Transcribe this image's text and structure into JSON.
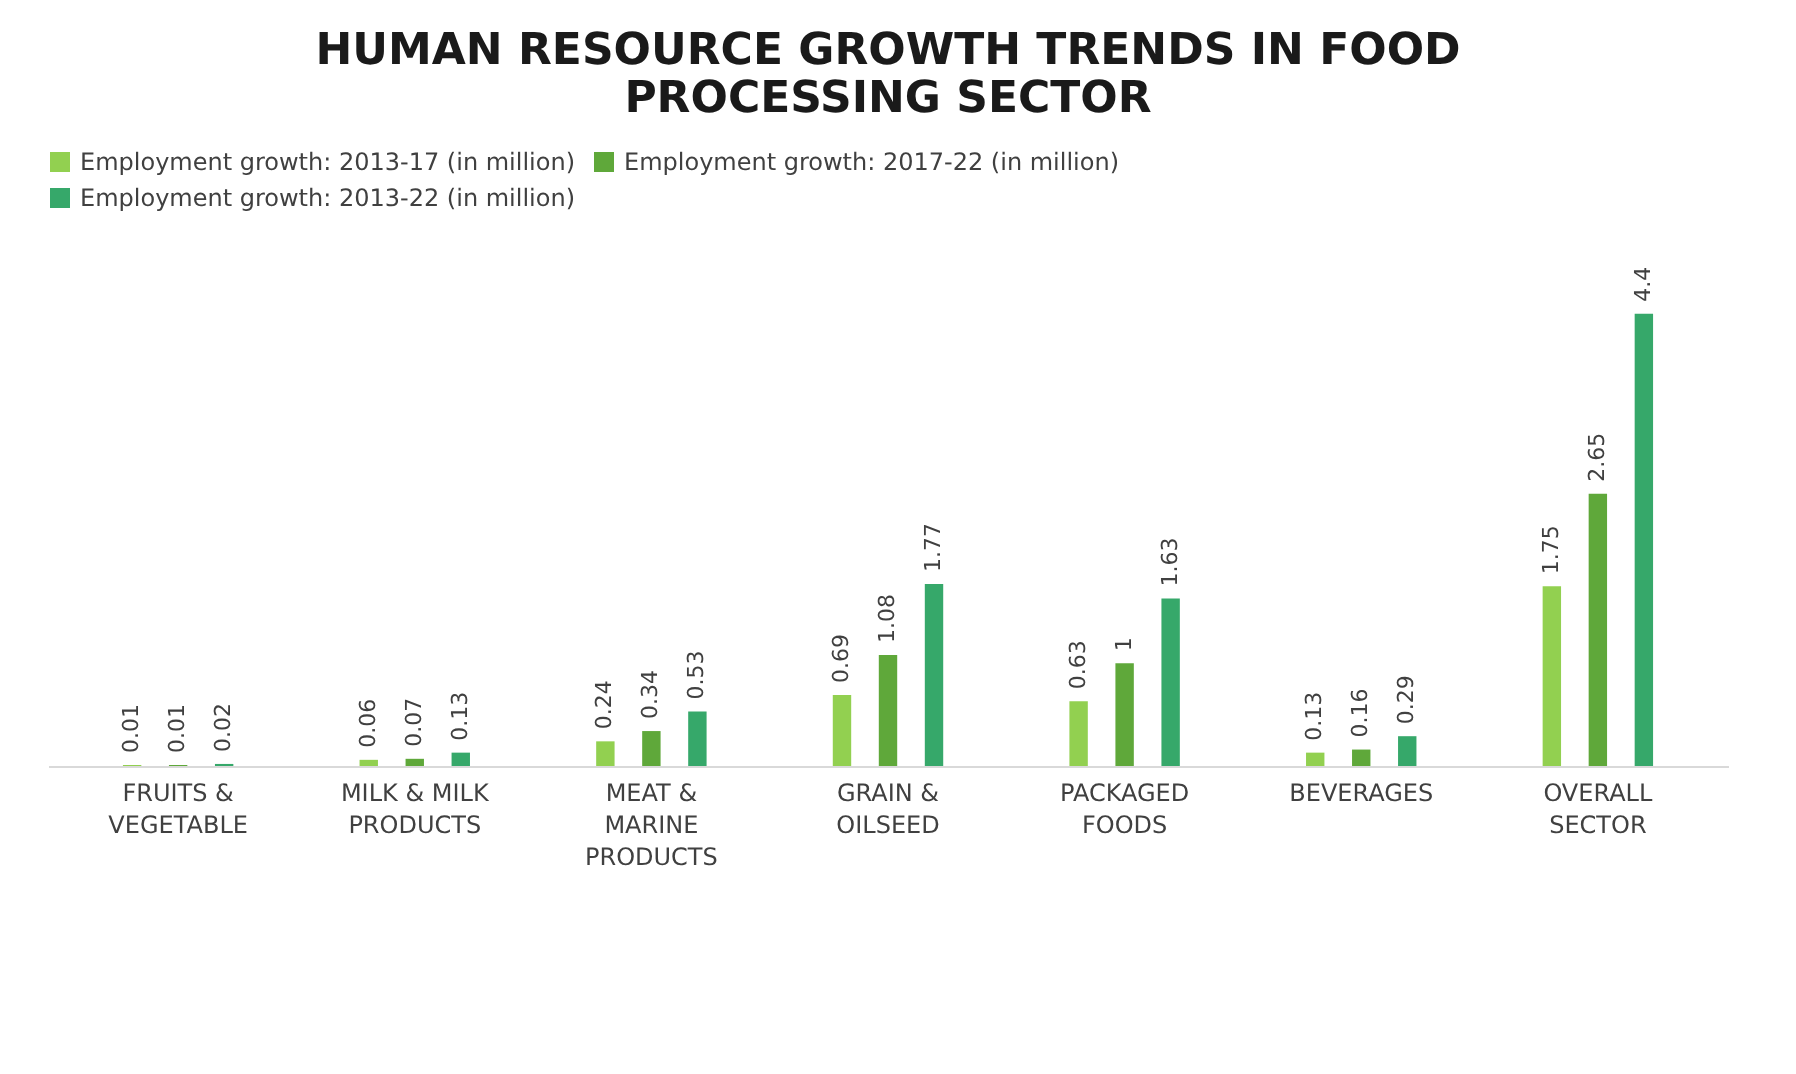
{
  "chart_data": {
    "type": "bar",
    "title": "HUMAN RESOURCE GROWTH TRENDS IN FOOD PROCESSING SECTOR",
    "categories": [
      "FRUITS & VEGETABLE",
      "MILK & MILK PRODUCTS",
      "MEAT & MARINE PRODUCTS",
      "GRAIN & OILSEED",
      "PACKAGED FOODS",
      "BEVERAGES",
      "OVERALL SECTOR"
    ],
    "series": [
      {
        "name": "Employment growth: 2013-17 (in million)",
        "color": "#92d050",
        "values": [
          0.01,
          0.06,
          0.24,
          0.69,
          0.63,
          0.13,
          1.75
        ]
      },
      {
        "name": "Employment growth: 2017-22 (in million)",
        "color": "#5fa83a",
        "values": [
          0.01,
          0.07,
          0.34,
          1.08,
          1,
          0.16,
          2.65
        ]
      },
      {
        "name": "Employment growth: 2013-22 (in million)",
        "color": "#36a86a",
        "values": [
          0.02,
          0.13,
          0.53,
          1.77,
          1.63,
          0.29,
          4.4
        ]
      }
    ],
    "data_labels": true,
    "legend": "top",
    "tick_labels": "x"
  }
}
